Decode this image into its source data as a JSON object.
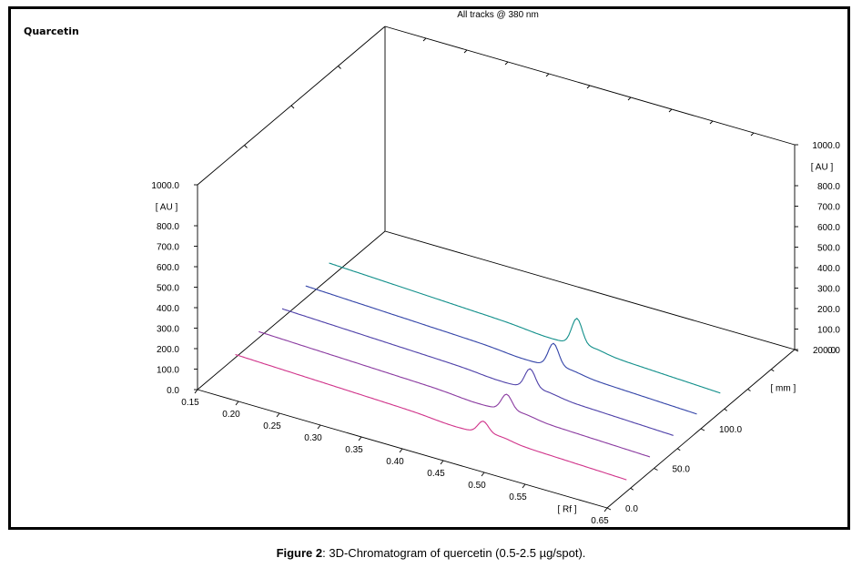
{
  "caption": {
    "label": "Figure 2",
    "text": ": 3D-Chromatogram of quercetin (0.5-2.5 µg/spot)."
  },
  "chart_data": {
    "type": "line",
    "title": "All tracks @ 380 nm",
    "sample_label": "Quarcetin",
    "x_axis": {
      "label": "[ Rf ]",
      "range": [
        0.15,
        0.65
      ],
      "ticks": [
        "0.15",
        "0.20",
        "0.25",
        "0.30",
        "0.35",
        "0.40",
        "0.45",
        "0.50",
        "0.55",
        "0.65"
      ]
    },
    "depth_axis": {
      "label": "[ mm ]",
      "range": [
        0.0,
        200.0
      ],
      "ticks": [
        "0.0",
        "50.0",
        "100.0",
        "200.0"
      ]
    },
    "y_axis_left": {
      "label": "[ AU ]",
      "range": [
        0.0,
        1000.0
      ],
      "ticks": [
        "0.0",
        "100.0",
        "200.0",
        "300.0",
        "400.0",
        "500.0",
        "600.0",
        "700.0",
        "800.0",
        "1000.0"
      ]
    },
    "y_axis_right": {
      "label": "[ AU ]",
      "range": [
        0.0,
        1000.0
      ],
      "ticks": [
        "0.0",
        "100.0",
        "200.0",
        "300.0",
        "400.0",
        "500.0",
        "600.0",
        "700.0",
        "800.0",
        "1000.0"
      ]
    },
    "peak_rf": 0.47,
    "tracks": [
      {
        "depth_mm": 25,
        "color": "#d0338a",
        "baseline_start": 95,
        "baseline_end": 35,
        "peak_height": 58
      },
      {
        "depth_mm": 50,
        "color": "#8a3aa0",
        "baseline_start": 110,
        "baseline_end": 50,
        "peak_height": 78
      },
      {
        "depth_mm": 75,
        "color": "#4d3fa8",
        "baseline_start": 125,
        "baseline_end": 58,
        "peak_height": 95
      },
      {
        "depth_mm": 100,
        "color": "#3344a8",
        "baseline_start": 140,
        "baseline_end": 66,
        "peak_height": 112
      },
      {
        "depth_mm": 125,
        "color": "#118f8a",
        "baseline_start": 155,
        "baseline_end": 72,
        "peak_height": 128
      }
    ]
  }
}
